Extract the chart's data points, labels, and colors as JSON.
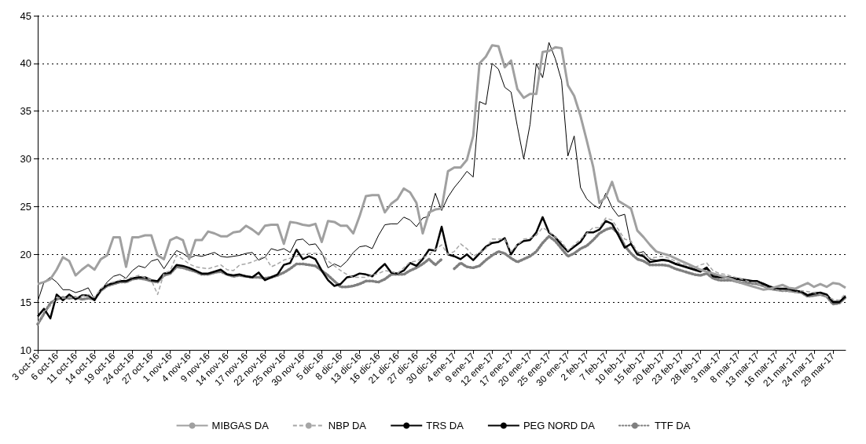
{
  "chart_data": {
    "type": "line",
    "categories": [
      "3 oct-16",
      null,
      null,
      "6 oct-16",
      null,
      null,
      "11 oct-16",
      null,
      null,
      "14 oct-16",
      null,
      null,
      "19 oct-16",
      null,
      null,
      "24 oct-16",
      null,
      null,
      "27 oct-16",
      null,
      null,
      "1 nov-16",
      null,
      null,
      "4 nov-16",
      null,
      null,
      "9 nov-16",
      null,
      null,
      "14 nov-16",
      null,
      null,
      "17 nov-16",
      null,
      null,
      "22 nov-16",
      null,
      null,
      "25 nov-16",
      null,
      null,
      "30 nov-16",
      null,
      null,
      "5 dic-16",
      null,
      null,
      "8 dic-16",
      null,
      null,
      "13 dic-16",
      null,
      null,
      "16 dic-16",
      null,
      null,
      "21 dic-16",
      null,
      null,
      "27 dic-16",
      null,
      null,
      "30 dic-16",
      null,
      null,
      "4 ene-17",
      null,
      null,
      "9 ene-17",
      null,
      null,
      "12 ene-17",
      null,
      null,
      "17 ene-17",
      null,
      null,
      "20 ene-17",
      null,
      null,
      "25 ene-17",
      null,
      null,
      "30 ene-17",
      null,
      null,
      "2 feb-17",
      null,
      null,
      "7 feb-17",
      null,
      null,
      "10 feb-17",
      null,
      null,
      "15 feb-17",
      null,
      null,
      "20 feb-17",
      null,
      null,
      "23 feb-17",
      null,
      null,
      "28 feb-17",
      null,
      null,
      "3 mar-17",
      null,
      null,
      "8 mar-17",
      null,
      null,
      "13 mar-17",
      null,
      null,
      "16 mar-17",
      null,
      null,
      "21 mar-17",
      null,
      null,
      "24 mar-17",
      null,
      null,
      "29 mar-17",
      null,
      null
    ],
    "series": [
      {
        "name": "MIBGAS DA",
        "color": "#a0a0a0",
        "line_style": "solid",
        "values": [
          16.9,
          17.1,
          17.4,
          18.4,
          19.7,
          19.3,
          17.8,
          18.4,
          18.9,
          18.4,
          19.5,
          19.9,
          21.8,
          21.8,
          18.7,
          21.8,
          21.8,
          22.0,
          22.0,
          19.9,
          19.5,
          21.5,
          21.8,
          21.5,
          19.5,
          21.5,
          21.5,
          22.4,
          22.2,
          21.9,
          21.9,
          22.3,
          22.4,
          23.0,
          22.6,
          22.1,
          23.0,
          23.1,
          23.1,
          21.1,
          23.4,
          23.3,
          23.1,
          23.0,
          23.2,
          21.3,
          23.5,
          23.4,
          23.0,
          23.0,
          22.2,
          24.0,
          26.1,
          26.2,
          26.2,
          24.4,
          25.3,
          25.8,
          26.9,
          26.5,
          25.4,
          22.2,
          24.4,
          24.7,
          24.8,
          28.7,
          29.1,
          29.1,
          29.9,
          32.4,
          40.0,
          40.7,
          41.9,
          41.8,
          39.6,
          40.3,
          37.3,
          36.4,
          36.8,
          36.8,
          41.2,
          41.3,
          41.7,
          41.6,
          37.7,
          36.6,
          34.5,
          31.9,
          29.2,
          25.4,
          26.0,
          27.6,
          25.6,
          25.2,
          24.8,
          22.5,
          21.8,
          21.0,
          20.3,
          20.1,
          19.9,
          19.6,
          19.3,
          19.0,
          18.7,
          18.4,
          18.2,
          18.0,
          17.8,
          17.6,
          17.4,
          17.1,
          16.9,
          16.7,
          16.5,
          16.3,
          16.4,
          16.6,
          16.8,
          16.5,
          16.4,
          16.7,
          17.0,
          16.6,
          16.9,
          16.6,
          17.0,
          16.9,
          16.5
        ]
      },
      {
        "name": "NBP DA",
        "color": "#a6a6a6",
        "line_style": "dashed",
        "values": [
          12.8,
          14.0,
          14.6,
          15.5,
          15.4,
          15.5,
          15.5,
          15.6,
          15.8,
          15.5,
          16.4,
          16.9,
          17.1,
          17.3,
          17.5,
          17.6,
          17.8,
          17.6,
          17.3,
          15.8,
          18.0,
          18.3,
          19.9,
          19.5,
          19.0,
          18.7,
          18.6,
          18.5,
          18.7,
          18.9,
          18.4,
          18.3,
          18.9,
          19.0,
          19.2,
          19.5,
          19.8,
          18.7,
          19.0,
          19.4,
          19.6,
          19.8,
          20.0,
          20.1,
          20.1,
          20.1,
          19.3,
          18.8,
          18.3,
          17.9,
          17.6,
          17.6,
          17.6,
          17.8,
          18.0,
          18.3,
          18.2,
          18.0,
          18.6,
          19.2,
          19.3,
          19.6,
          20.0,
          20.5,
          21.0,
          20.0,
          20.3,
          21.1,
          20.6,
          19.8,
          20.2,
          20.6,
          21.6,
          21.6,
          21.6,
          20.3,
          21.0,
          21.6,
          21.7,
          22.0,
          22.8,
          22.4,
          21.8,
          21.3,
          20.4,
          21.0,
          21.6,
          22.2,
          22.8,
          22.8,
          23.8,
          23.6,
          22.6,
          21.6,
          21.4,
          20.3,
          20.0,
          19.6,
          19.7,
          19.8,
          19.6,
          19.3,
          19.0,
          18.8,
          18.6,
          18.9,
          19.1,
          18.3,
          18.0,
          17.9,
          17.7,
          17.5,
          17.3,
          17.1,
          16.9,
          16.7,
          16.4,
          16.3,
          16.2,
          16.1,
          16.0,
          16.2,
          16.1,
          16.0,
          15.8,
          15.6,
          15.3,
          15.2,
          15.9
        ]
      },
      {
        "name": "TRS DA",
        "color": "#000000",
        "line_style": "solid",
        "values": [
          15.1,
          17.1,
          17.6,
          17.1,
          16.3,
          16.3,
          16.0,
          16.2,
          16.5,
          15.3,
          16.2,
          17.1,
          17.7,
          17.9,
          17.5,
          18.3,
          18.8,
          18.6,
          19.3,
          19.5,
          18.5,
          19.5,
          20.4,
          20.1,
          19.6,
          19.9,
          19.8,
          20.0,
          20.2,
          19.8,
          19.7,
          19.8,
          19.9,
          20.1,
          20.2,
          19.4,
          19.7,
          20.6,
          20.4,
          20.6,
          20.2,
          21.5,
          21.6,
          21.0,
          21.1,
          20.2,
          18.6,
          19.0,
          18.7,
          19.3,
          20.2,
          20.8,
          20.9,
          20.6,
          22.0,
          23.1,
          23.2,
          23.2,
          23.9,
          23.6,
          22.9,
          23.8,
          24.0,
          26.4,
          24.6,
          26.0,
          27.0,
          27.8,
          28.7,
          28.1,
          36.0,
          35.7,
          40.0,
          39.4,
          37.5,
          37.0,
          33.4,
          30.0,
          33.6,
          40.0,
          38.5,
          42.2,
          40.5,
          38.2,
          30.3,
          32.4,
          27.0,
          25.8,
          25.2,
          24.8,
          26.4,
          24.9,
          24.0,
          24.2,
          21.0,
          20.1,
          20.3,
          19.5,
          19.4,
          19.5,
          19.4,
          19.1,
          18.9,
          18.7,
          18.5,
          18.3,
          18.7,
          17.9,
          17.7,
          17.7,
          17.6,
          17.5,
          17.4,
          17.3,
          17.2,
          17.0,
          16.7,
          16.5,
          16.4,
          16.4,
          16.2,
          16.1,
          15.8,
          16.0,
          16.0,
          15.8,
          15.1,
          15.1,
          15.7
        ]
      },
      {
        "name": "PEG NORD DA",
        "color": "#000000",
        "line_style": "solid",
        "values": [
          13.5,
          14.3,
          13.3,
          15.8,
          15.2,
          15.8,
          15.3,
          15.7,
          15.7,
          15.2,
          16.3,
          16.8,
          17.0,
          17.2,
          17.2,
          17.5,
          17.6,
          17.6,
          17.3,
          17.2,
          18.0,
          18.1,
          18.9,
          18.8,
          18.6,
          18.3,
          18.0,
          18.0,
          18.2,
          18.4,
          17.9,
          17.8,
          17.9,
          17.7,
          17.6,
          18.1,
          17.3,
          17.6,
          17.9,
          18.9,
          19.1,
          20.5,
          19.5,
          19.8,
          19.5,
          18.3,
          17.3,
          16.7,
          16.9,
          17.6,
          17.7,
          18.0,
          17.9,
          17.7,
          18.4,
          19.0,
          18.1,
          18.0,
          18.3,
          19.1,
          18.8,
          19.5,
          20.5,
          20.4,
          22.9,
          20.0,
          19.8,
          19.5,
          20.0,
          19.4,
          20.1,
          20.8,
          21.2,
          21.3,
          21.7,
          20.0,
          21.0,
          21.4,
          21.5,
          22.3,
          23.9,
          22.3,
          21.8,
          21.0,
          20.3,
          20.8,
          21.3,
          22.3,
          22.3,
          22.6,
          23.5,
          23.2,
          22.0,
          20.7,
          21.1,
          20.0,
          19.8,
          19.2,
          19.3,
          19.4,
          19.3,
          19.0,
          18.8,
          18.6,
          18.4,
          18.2,
          18.6,
          17.7,
          17.6,
          17.6,
          17.5,
          17.4,
          17.3,
          17.2,
          17.2,
          16.9,
          16.6,
          16.4,
          16.4,
          16.4,
          16.2,
          16.1,
          15.7,
          15.9,
          16.0,
          15.8,
          15.0,
          15.0,
          15.6
        ]
      },
      {
        "name": "TTF DA",
        "color": "#7f7f7f",
        "line_style": "dotted",
        "values": [
          12.7,
          13.8,
          14.9,
          15.3,
          15.5,
          15.4,
          15.5,
          15.3,
          15.4,
          15.3,
          16.2,
          16.7,
          16.9,
          17.1,
          17.1,
          17.4,
          17.5,
          17.4,
          17.2,
          17.1,
          17.8,
          18.0,
          18.7,
          18.6,
          18.4,
          18.2,
          17.9,
          17.9,
          18.1,
          18.2,
          17.9,
          17.7,
          17.8,
          17.7,
          17.6,
          17.6,
          17.5,
          17.6,
          17.8,
          18.1,
          18.5,
          19.0,
          19.0,
          18.9,
          18.8,
          18.3,
          17.8,
          17.2,
          16.6,
          16.6,
          16.7,
          16.9,
          17.2,
          17.2,
          17.1,
          17.4,
          17.9,
          17.9,
          17.9,
          18.3,
          18.6,
          19.0,
          19.5,
          18.9,
          19.5,
          null,
          18.5,
          19.1,
          18.7,
          18.6,
          18.8,
          19.4,
          19.9,
          20.3,
          20.1,
          19.6,
          19.2,
          19.5,
          19.8,
          20.3,
          21.2,
          21.9,
          21.4,
          20.6,
          19.8,
          20.1,
          20.6,
          20.9,
          21.5,
          22.2,
          22.6,
          22.8,
          22.2,
          20.9,
          20.1,
          19.5,
          19.3,
          18.9,
          18.9,
          18.9,
          18.8,
          18.5,
          18.3,
          18.1,
          17.9,
          17.8,
          18.0,
          17.5,
          17.3,
          17.3,
          17.3,
          17.1,
          17.0,
          17.0,
          16.9,
          16.7,
          16.4,
          16.3,
          16.2,
          16.2,
          16.1,
          16.0,
          15.6,
          15.7,
          15.8,
          15.6,
          14.8,
          14.9,
          15.5
        ]
      }
    ],
    "ylim": [
      10,
      45
    ],
    "yticks": [
      10,
      15,
      20,
      25,
      30,
      35,
      40,
      45
    ],
    "grid": "y",
    "legend": "bottom",
    "marker": "none"
  }
}
